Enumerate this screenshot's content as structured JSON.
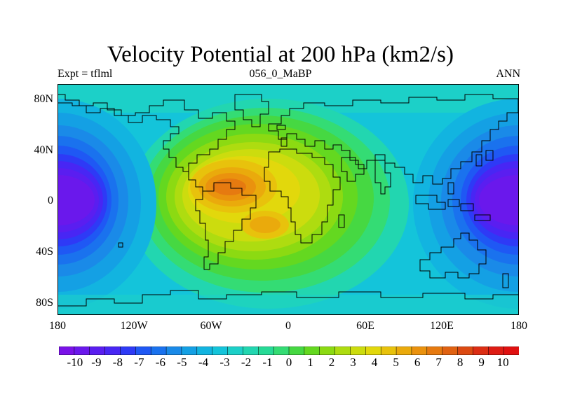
{
  "plot": {
    "title": "Velocity Potential at 200 hPa (km2/s)",
    "left_label": "Expt = tflml",
    "center_label": "056_0_MaBP",
    "right_label": "ANN"
  },
  "axes": {
    "lat_labels": [
      "80N",
      "40N",
      "0",
      "40S",
      "80S"
    ],
    "lat_values": [
      80,
      40,
      0,
      -40,
      -80
    ],
    "lon_labels": [
      "180",
      "120W",
      "60W",
      "0",
      "60E",
      "120E",
      "180"
    ],
    "lon_values": [
      -180,
      -120,
      -60,
      0,
      60,
      120,
      180
    ],
    "lat_range": [
      -90,
      90
    ],
    "lon_range": [
      -180,
      180
    ]
  },
  "colorbar": {
    "labels": [
      "-10",
      "-9",
      "-8",
      "-7",
      "-6",
      "-5",
      "-4",
      "-3",
      "-2",
      "-1",
      "0",
      "1",
      "2",
      "3",
      "4",
      "5",
      "6",
      "7",
      "8",
      "9",
      "10"
    ],
    "colors": [
      "#7a12e8",
      "#6a18ec",
      "#5a1ef0",
      "#4826f4",
      "#2e3af6",
      "#1f58f4",
      "#1a72ee",
      "#1a8ae8",
      "#14a0e4",
      "#12b4e0",
      "#14c4da",
      "#1cd0c8",
      "#22d6b0",
      "#26da96",
      "#34dc74",
      "#46d842",
      "#64d820",
      "#8cda12",
      "#aedc10",
      "#ccdc0e",
      "#e2d80c",
      "#e8c20c",
      "#eaaa0c",
      "#ea920e",
      "#e67a10",
      "#e06212",
      "#dc4a12",
      "#dc2e14",
      "#de1c14",
      "#e01010"
    ],
    "ticks": [
      -10,
      -9,
      -8,
      -7,
      -6,
      -5,
      -4,
      -3,
      -2,
      -1,
      0,
      1,
      2,
      3,
      4,
      5,
      6,
      7,
      8,
      9,
      10
    ],
    "range": [
      -10.75,
      10.75
    ]
  },
  "field": {
    "variable": "velocity potential",
    "units": "km2/s",
    "features": [
      {
        "name": "west pacific minimum",
        "lon": -180,
        "lat": 5,
        "value": -10
      },
      {
        "name": "east pacific minimum",
        "lon": 180,
        "lat": 5,
        "value": -10
      },
      {
        "name": "south american maximum",
        "lon": -35,
        "lat": 15,
        "value": 8
      },
      {
        "name": "south atlantic maximum",
        "lon": -10,
        "lat": -20,
        "value": 6.5
      },
      {
        "name": "african maximum",
        "lon": 10,
        "lat": 10,
        "value": 5.5
      }
    ]
  }
}
